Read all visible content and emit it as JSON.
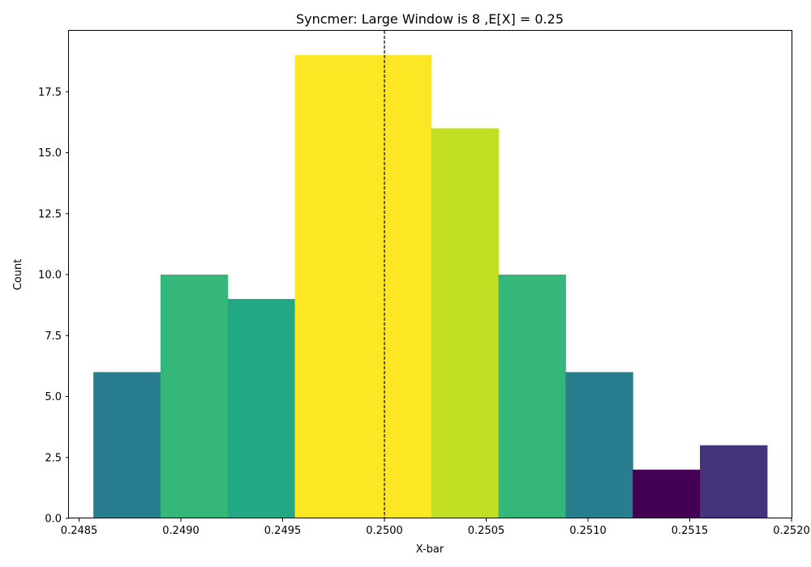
{
  "chart_data": {
    "type": "bar",
    "title": "Syncmer: Large Window is 8 ,E[X] = 0.25",
    "xlabel": "X-bar",
    "ylabel": "Count",
    "xlim": [
      0.24845,
      0.252
    ],
    "ylim": [
      0,
      20
    ],
    "grid": false,
    "bins": [
      {
        "start": 0.24857,
        "end": 0.2489,
        "value": 6,
        "color": "#287d8e"
      },
      {
        "start": 0.2489,
        "end": 0.24923,
        "value": 10,
        "color": "#35b779"
      },
      {
        "start": 0.24923,
        "end": 0.24956,
        "value": 9,
        "color": "#22a884"
      },
      {
        "start": 0.24956,
        "end": 0.24989,
        "value": 19,
        "color": "#fde725"
      },
      {
        "start": 0.24989,
        "end": 0.25023,
        "value": 19,
        "color": "#fde725"
      },
      {
        "start": 0.25023,
        "end": 0.25056,
        "value": 16,
        "color": "#c2df23"
      },
      {
        "start": 0.25056,
        "end": 0.25089,
        "value": 10,
        "color": "#35b779"
      },
      {
        "start": 0.25089,
        "end": 0.25122,
        "value": 6,
        "color": "#287d8e"
      },
      {
        "start": 0.25122,
        "end": 0.25155,
        "value": 2,
        "color": "#440154"
      },
      {
        "start": 0.25155,
        "end": 0.25188,
        "value": 3,
        "color": "#46337e"
      }
    ],
    "x_ticks": [
      {
        "value": 0.2485,
        "label": "0.2485"
      },
      {
        "value": 0.249,
        "label": "0.2490"
      },
      {
        "value": 0.2495,
        "label": "0.2495"
      },
      {
        "value": 0.25,
        "label": "0.2500"
      },
      {
        "value": 0.2505,
        "label": "0.2505"
      },
      {
        "value": 0.251,
        "label": "0.2510"
      },
      {
        "value": 0.2515,
        "label": "0.2515"
      },
      {
        "value": 0.252,
        "label": "0.2520"
      }
    ],
    "y_ticks": [
      {
        "value": 0.0,
        "label": "0.0"
      },
      {
        "value": 2.5,
        "label": "2.5"
      },
      {
        "value": 5.0,
        "label": "5.0"
      },
      {
        "value": 7.5,
        "label": "7.5"
      },
      {
        "value": 10.0,
        "label": "10.0"
      },
      {
        "value": 12.5,
        "label": "12.5"
      },
      {
        "value": 15.0,
        "label": "15.0"
      },
      {
        "value": 17.5,
        "label": "17.5"
      }
    ],
    "reference_line": {
      "x": 0.25,
      "style": "dashed",
      "color": "#000000"
    }
  }
}
